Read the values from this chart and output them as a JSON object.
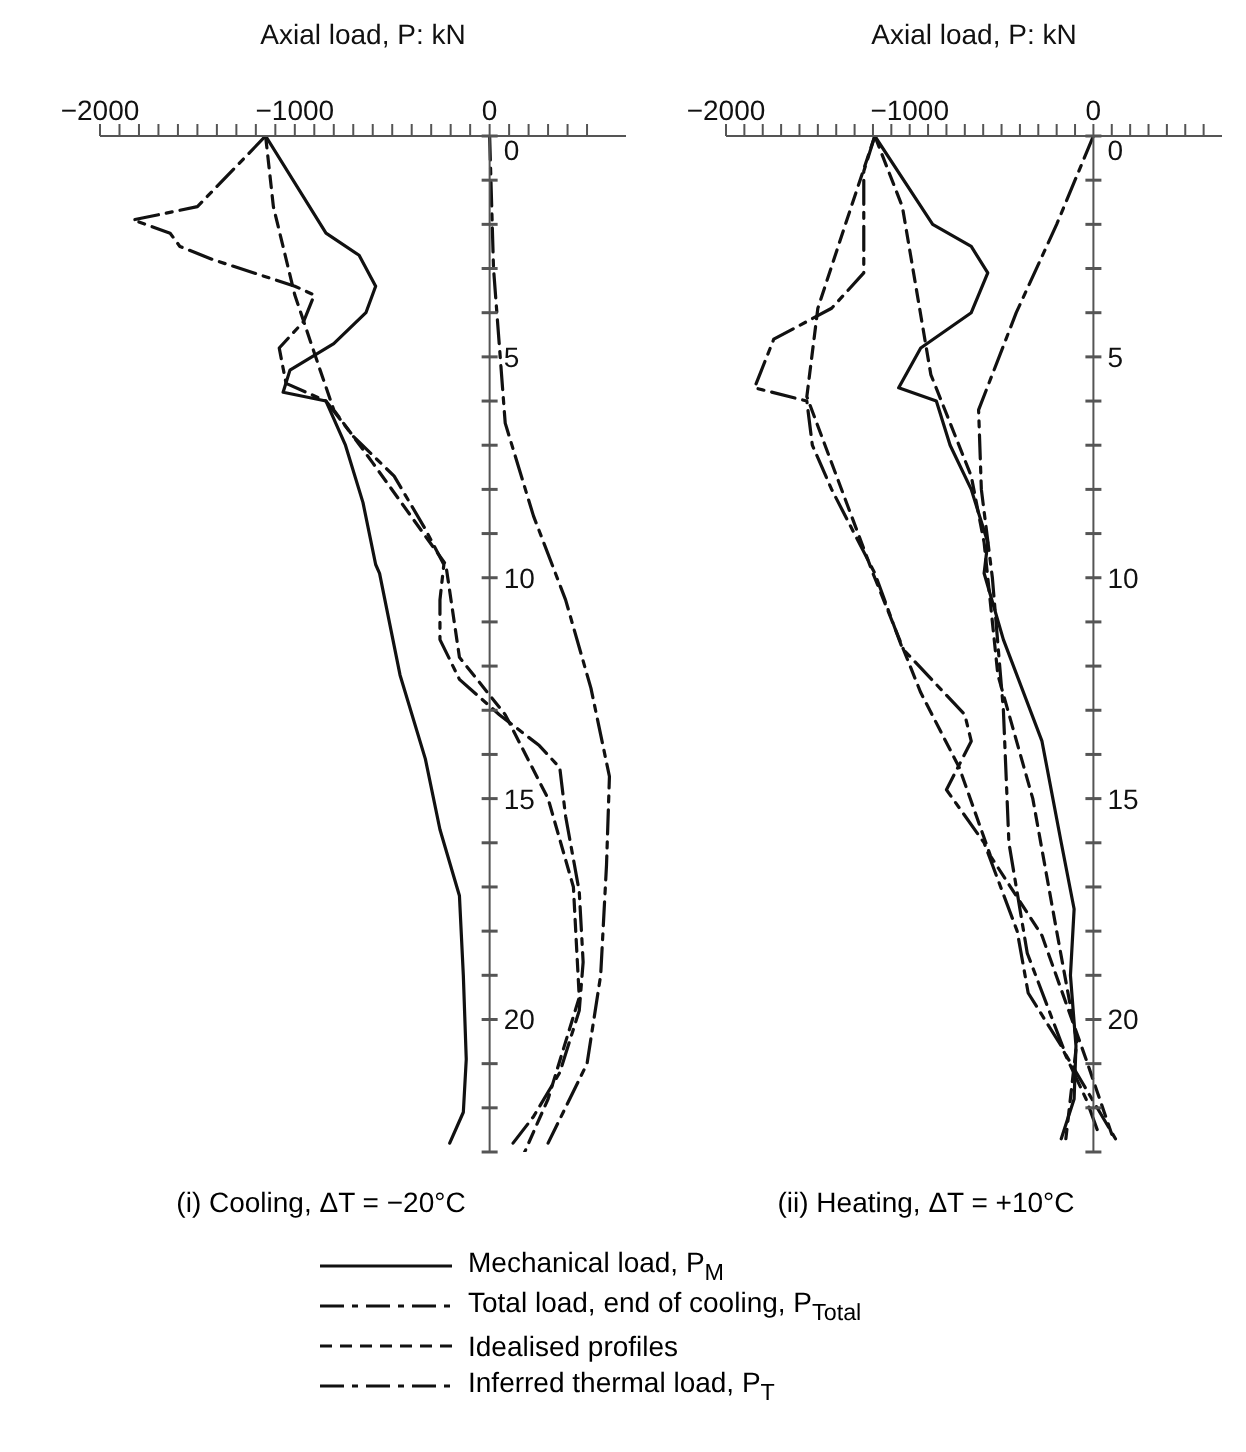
{
  "chart_data": [
    {
      "type": "line",
      "title": "(i) Cooling, ΔT = −20°C",
      "xlabel": "Axial load, P: kN",
      "xlim": [
        -2000,
        700
      ],
      "xticks": [
        {
          "value": -2000,
          "label": "−2000"
        },
        {
          "value": -1900,
          "label": null
        },
        {
          "value": -1800,
          "label": null
        },
        {
          "value": -1700,
          "label": null
        },
        {
          "value": -1600,
          "label": null
        },
        {
          "value": -1500,
          "label": null
        },
        {
          "value": -1400,
          "label": null
        },
        {
          "value": -1300,
          "label": null
        },
        {
          "value": -1200,
          "label": null
        },
        {
          "value": -1100,
          "label": null
        },
        {
          "value": -1000,
          "label": "−1000"
        },
        {
          "value": -900,
          "label": null
        },
        {
          "value": -800,
          "label": null
        },
        {
          "value": -700,
          "label": null
        },
        {
          "value": -600,
          "label": null
        },
        {
          "value": -500,
          "label": null
        },
        {
          "value": -400,
          "label": null
        },
        {
          "value": -300,
          "label": null
        },
        {
          "value": -200,
          "label": null
        },
        {
          "value": -100,
          "label": null
        },
        0,
        {
          "value": 100,
          "label": null
        },
        {
          "value": 200,
          "label": null
        },
        {
          "value": 300,
          "label": null
        },
        {
          "value": 400,
          "label": null
        },
        {
          "value": 500,
          "label": null
        }
      ],
      "ylim": [
        23,
        0
      ],
      "yticks": [
        0,
        {
          "value": 1,
          "label": null
        },
        {
          "value": 2,
          "label": null
        },
        {
          "value": 3,
          "label": null
        },
        {
          "value": 4,
          "label": null
        },
        5,
        {
          "value": 6,
          "label": null
        },
        {
          "value": 7,
          "label": null
        },
        {
          "value": 8,
          "label": null
        },
        {
          "value": 9,
          "label": null
        },
        10,
        {
          "value": 11,
          "label": null
        },
        {
          "value": 12,
          "label": null
        },
        {
          "value": 13,
          "label": null
        },
        {
          "value": 14,
          "label": null
        },
        15,
        {
          "value": 16,
          "label": null
        },
        {
          "value": 17,
          "label": null
        },
        {
          "value": 18,
          "label": null
        },
        {
          "value": 19,
          "label": null
        },
        20,
        {
          "value": 21,
          "label": null
        },
        {
          "value": 22,
          "label": null
        },
        {
          "value": 23,
          "label": null
        }
      ],
      "legend": "bottom",
      "grid": false,
      "series": [
        {
          "name": "Mechanical load, P$_{M}$",
          "color": "#111111",
          "line_style": "solid",
          "x": [
            -1150,
            -840,
            -670,
            -585,
            -635,
            -800,
            -1025,
            -1060,
            -840,
            -740,
            -650,
            -585,
            -565,
            -460,
            -330,
            -255,
            -155,
            -135,
            -120,
            -135,
            -205
          ],
          "values": [
            0,
            2.2,
            2.7,
            3.4,
            4.0,
            4.7,
            5.3,
            5.8,
            6.0,
            7,
            8.3,
            9.7,
            9.9,
            12.2,
            14.1,
            15.7,
            17.2,
            19,
            20.9,
            22.1,
            22.8
          ]
        },
        {
          "name": "Total load, end of cooling, P$_{Total}$",
          "color": "#111111",
          "line_style": "dashdot",
          "x": [
            -1150,
            -1500,
            -1830,
            -1640,
            -1590,
            -1420,
            -1000,
            -900,
            -955,
            -1080,
            -1045,
            -840,
            -700,
            -490,
            -330,
            -235,
            -255,
            -255,
            -155,
            50,
            255,
            360,
            390,
            460,
            480,
            460,
            360,
            225,
            120
          ],
          "values": [
            0,
            1.6,
            1.9,
            2.2,
            2.5,
            2.8,
            3.4,
            3.6,
            4.2,
            4.8,
            5.6,
            6,
            6.8,
            7.7,
            8.9,
            9.7,
            10.5,
            11.4,
            12.3,
            13.1,
            13.8,
            14.3,
            15.4,
            17.1,
            18.7,
            19.8,
            21.2,
            22.2,
            22.8
          ]
        },
        {
          "name": "Idealised profiles",
          "color": "#111111",
          "line_style": "dashed",
          "x": [
            -1150,
            -1110,
            -1000,
            -870,
            -800,
            -600,
            -225,
            -155,
            80,
            300,
            430,
            460,
            300,
            180
          ],
          "values": [
            0,
            1.6,
            3.6,
            5.3,
            6.2,
            7.4,
            9.7,
            11.8,
            13.1,
            15,
            17,
            19.5,
            21.8,
            23
          ]
        },
        {
          "name": "Inferred thermal load, P$_{T}$",
          "color": "#111111",
          "line_style": "dashdot",
          "x": [
            0,
            20,
            80,
            225,
            390,
            520,
            615,
            600,
            570,
            500,
            300
          ],
          "values": [
            0,
            3,
            6.5,
            8.6,
            10.5,
            12.5,
            14.5,
            16.5,
            19,
            21,
            22.8
          ]
        }
      ]
    },
    {
      "type": "line",
      "title": "(ii) Heating, ΔT = +10°C",
      "xlabel": "Axial load, P: kN",
      "xlim": [
        -2000,
        700
      ],
      "xticks": [
        {
          "value": -2000,
          "label": "−2000"
        },
        {
          "value": -1900,
          "label": null
        },
        {
          "value": -1800,
          "label": null
        },
        {
          "value": -1700,
          "label": null
        },
        {
          "value": -1600,
          "label": null
        },
        {
          "value": -1500,
          "label": null
        },
        {
          "value": -1400,
          "label": null
        },
        {
          "value": -1300,
          "label": null
        },
        {
          "value": -1200,
          "label": null
        },
        {
          "value": -1100,
          "label": null
        },
        {
          "value": -1000,
          "label": "−1000"
        },
        {
          "value": -900,
          "label": null
        },
        {
          "value": -800,
          "label": null
        },
        {
          "value": -700,
          "label": null
        },
        {
          "value": -600,
          "label": null
        },
        {
          "value": -500,
          "label": null
        },
        {
          "value": -400,
          "label": null
        },
        {
          "value": -300,
          "label": null
        },
        {
          "value": -200,
          "label": null
        },
        {
          "value": -100,
          "label": null
        },
        0,
        {
          "value": 100,
          "label": null
        },
        {
          "value": 200,
          "label": null
        },
        {
          "value": 300,
          "label": null
        },
        {
          "value": 400,
          "label": null
        },
        {
          "value": 500,
          "label": null
        },
        {
          "value": 600,
          "label": null
        }
      ],
      "ylim": [
        23,
        0
      ],
      "yticks": [
        0,
        {
          "value": 1,
          "label": null
        },
        {
          "value": 2,
          "label": null
        },
        {
          "value": 3,
          "label": null
        },
        {
          "value": 4,
          "label": null
        },
        5,
        {
          "value": 6,
          "label": null
        },
        {
          "value": 7,
          "label": null
        },
        {
          "value": 8,
          "label": null
        },
        {
          "value": 9,
          "label": null
        },
        10,
        {
          "value": 11,
          "label": null
        },
        {
          "value": 12,
          "label": null
        },
        {
          "value": 13,
          "label": null
        },
        {
          "value": 14,
          "label": null
        },
        15,
        {
          "value": 16,
          "label": null
        },
        {
          "value": 17,
          "label": null
        },
        {
          "value": 18,
          "label": null
        },
        {
          "value": 19,
          "label": null
        },
        20,
        {
          "value": 21,
          "label": null
        },
        {
          "value": 22,
          "label": null
        },
        {
          "value": 23,
          "label": null
        }
      ],
      "grid": false,
      "series": [
        {
          "color": "#111111",
          "line_style": "solid",
          "x": [
            -1190,
            -875,
            -665,
            -575,
            -665,
            -940,
            -1060,
            -855,
            -780,
            -665,
            -575,
            -595,
            -490,
            -280,
            -175,
            -105,
            -125,
            -95,
            -105,
            -175
          ],
          "values": [
            0,
            2,
            2.5,
            3.1,
            4,
            4.8,
            5.7,
            6,
            7,
            8,
            9.2,
            9.9,
            11.4,
            13.7,
            16,
            17.5,
            19,
            20.6,
            21.8,
            22.7
          ]
        },
        {
          "color": "#111111",
          "line_style": "dashdot",
          "x": [
            -1190,
            -1250,
            -1250,
            -1425,
            -1740,
            -1845,
            -1560,
            -1530,
            -1425,
            -1190,
            -1040,
            -700,
            -665,
            -800,
            -595,
            -415,
            -355,
            -175,
            -40,
            30
          ],
          "values": [
            0,
            0.8,
            3.1,
            3.9,
            4.6,
            5.7,
            6,
            7,
            8,
            9.9,
            11.6,
            13.1,
            13.7,
            14.8,
            16,
            18,
            19.4,
            20.6,
            21.8,
            22.6
          ]
        },
        {
          "color": "#111111",
          "line_style": "dashed",
          "x": [
            -1190,
            -1350,
            -1500,
            -1560,
            -1200,
            -940,
            -730,
            -560,
            -280,
            -40,
            100
          ],
          "values": [
            0,
            2,
            3.9,
            5.9,
            9.9,
            12.6,
            14.3,
            16.3,
            18.1,
            20.9,
            22.6
          ]
        },
        {
          "color": "#111111",
          "line_style": "dashed",
          "x": [
            -1190,
            -1040,
            -885,
            -665,
            -595,
            -520,
            -330,
            -200,
            -90,
            -150
          ],
          "values": [
            0,
            1.6,
            5.4,
            7.7,
            9.2,
            12.2,
            15,
            18,
            20.5,
            22.7
          ]
        },
        {
          "color": "#111111",
          "line_style": "dashdot",
          "x": [
            0,
            -200,
            -420,
            -625,
            -610,
            -550,
            -490,
            -460,
            -360,
            -150,
            120
          ],
          "values": [
            0,
            2,
            4,
            6.2,
            8,
            10,
            13,
            16,
            18.5,
            20.8,
            22.7
          ]
        }
      ]
    }
  ]
}
